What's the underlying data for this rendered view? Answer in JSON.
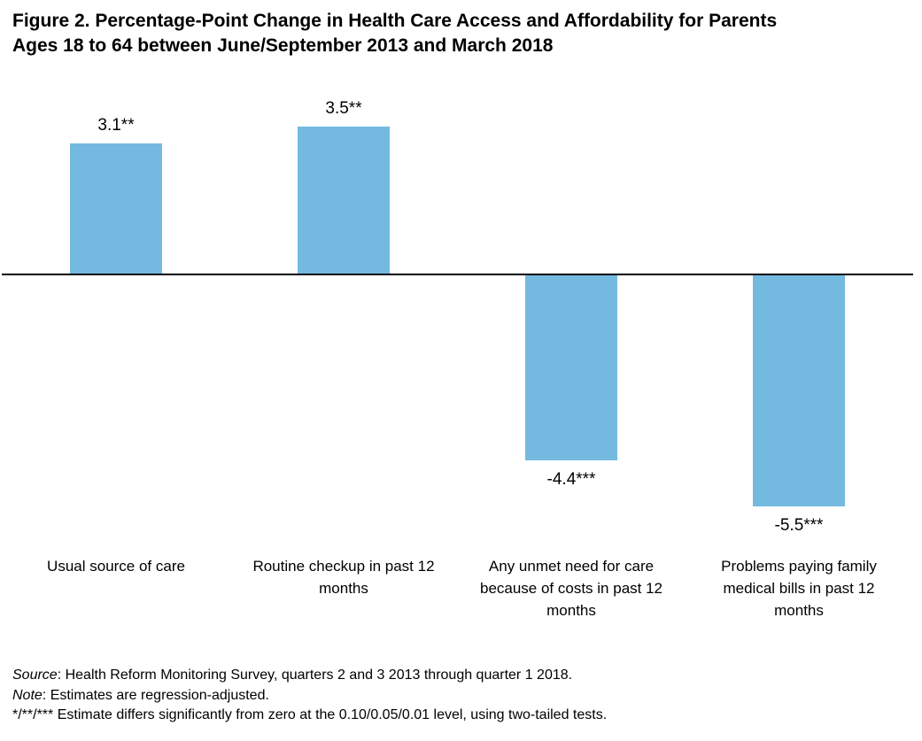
{
  "header": {
    "title_line1": "Figure 2. Percentage-Point Change in Health Care Access and Affordability for Parents",
    "title_line2": "Ages 18 to 64 between June/September 2013 and March 2018"
  },
  "chart_data": {
    "type": "bar",
    "title": "Figure 2. Percentage-Point Change in Health Care Access and Affordability for Parents Ages 18 to 64 between June/September 2013 and March 2018",
    "categories": [
      "Usual source of care",
      "Routine checkup in past 12 months",
      "Any unmet need for care because of costs in past 12 months",
      "Problems paying family medical bills in past 12 months"
    ],
    "category_lines": [
      [
        "Usual source of care"
      ],
      [
        "Routine checkup in past 12",
        "months"
      ],
      [
        "Any unmet need for care",
        "because of costs in past 12",
        "months"
      ],
      [
        "Problems paying family",
        "medical bills in past 12",
        "months"
      ]
    ],
    "values": [
      3.1,
      3.5,
      -4.4,
      -5.5
    ],
    "data_labels": [
      "3.1**",
      "3.5**",
      "-4.4***",
      "-5.5***"
    ],
    "significance": [
      "**",
      "**",
      "***",
      "***"
    ],
    "bar_color": "#74bae0",
    "axis_color": "#000000",
    "baseline_value": 0,
    "ylim": [
      -6.5,
      4.5
    ],
    "unit": "percentage points",
    "grid": "off",
    "legend": "none"
  },
  "notes": {
    "source_label": "Source",
    "source_text": ": Health Reform Monitoring Survey, quarters 2 and 3 2013 through quarter 1 2018.",
    "note_label": "Note",
    "note_text": ": Estimates are regression-adjusted.",
    "significance_text": "*/**/*** Estimate differs significantly from zero at the 0.10/0.05/0.01 level, using two-tailed tests."
  }
}
